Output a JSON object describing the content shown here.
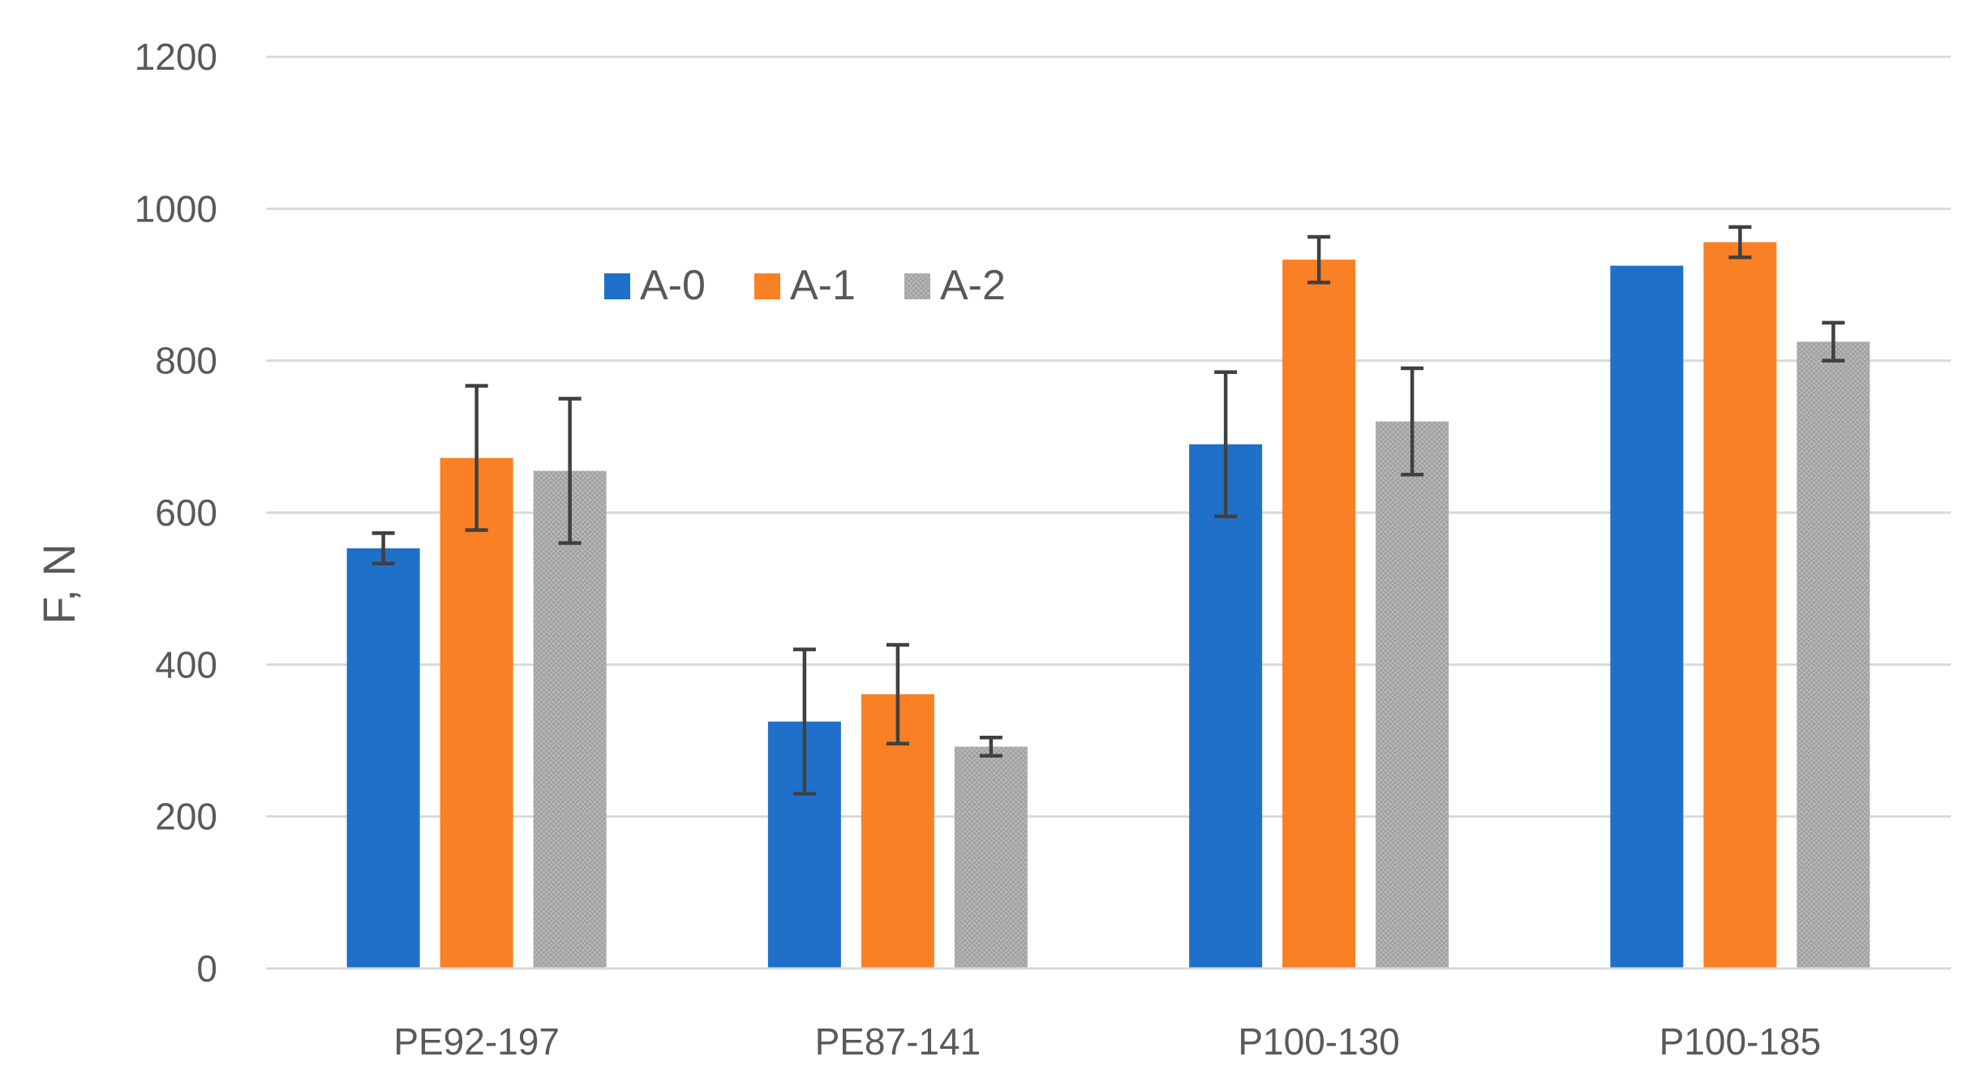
{
  "chart_data": {
    "type": "bar",
    "title": "",
    "xlabel": "",
    "ylabel": "F, N",
    "ylim": [
      0,
      1200
    ],
    "yticks": [
      0,
      200,
      400,
      600,
      800,
      1000,
      1200
    ],
    "ytick_labels": [
      "0",
      "200",
      "400",
      "600",
      "800",
      "1000",
      "1200"
    ],
    "grid": true,
    "legend_position": "top-center",
    "categories": [
      "PE92-197",
      "PE87-141",
      "P100-130",
      "P100-185"
    ],
    "series": [
      {
        "name": "A-0",
        "color": "#1f70c8",
        "values": [
          553,
          325,
          690,
          925
        ],
        "errors": [
          20,
          95,
          95,
          0
        ]
      },
      {
        "name": "A-1",
        "color": "#f98025",
        "values": [
          672,
          361,
          933,
          956
        ],
        "errors": [
          95,
          65,
          30,
          20
        ]
      },
      {
        "name": "A-2",
        "color": "#a9a9a9",
        "values": [
          655,
          292,
          720,
          825
        ],
        "errors": [
          95,
          12,
          70,
          25
        ]
      }
    ]
  }
}
